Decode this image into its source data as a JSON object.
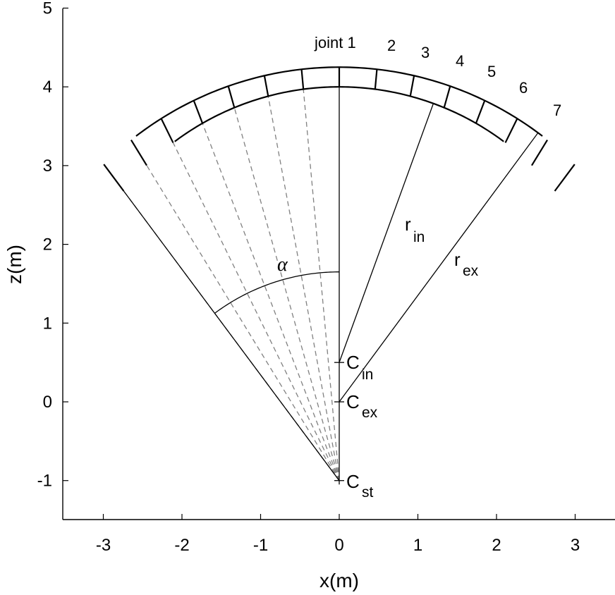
{
  "axes": {
    "xlabel": "x(m)",
    "ylabel": "z(m)",
    "xlim": [
      -3.5,
      3.5
    ],
    "ylim": [
      -1.5,
      5
    ],
    "xticks": [
      -3,
      -2,
      -1,
      0,
      1,
      2,
      3
    ],
    "yticks": [
      -1,
      0,
      1,
      2,
      3,
      4,
      5
    ]
  },
  "geometry": {
    "crown_thickness_m": 0.25,
    "inner_center_z_m": 0.5,
    "extrados_center_z_m": 0.0,
    "construction_center_z_m": -1.0,
    "inner_crown_z_m": 4.0,
    "n_voussoirs": 14,
    "half_angle_deg": 36.7,
    "alpha_arc_radius_m": 2.65
  },
  "labels": {
    "alpha": "α",
    "r_in_main": "r",
    "r_in_sub": "in",
    "r_ex_main": "r",
    "r_ex_sub": "ex",
    "c_in_main": "C",
    "c_in_sub": "in",
    "c_ex_main": "C",
    "c_ex_sub": "ex",
    "c_st_main": "C",
    "c_st_sub": "st"
  },
  "joint_labels": [
    "joint 1",
    "2",
    "3",
    "4",
    "5",
    "6",
    "7"
  ],
  "colors": {
    "line": "#000000",
    "dashed": "#808080",
    "background": "#ffffff"
  }
}
